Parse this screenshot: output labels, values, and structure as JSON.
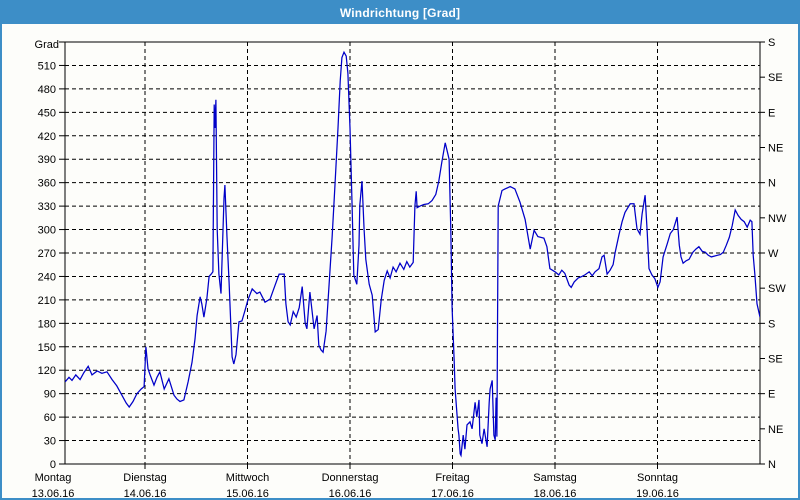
{
  "window": {
    "title": "Windrichtung [Grad]",
    "titlebar_color": "#3d8ec7",
    "border_color": "#3d8ec7",
    "background_color": "#fdfdfa"
  },
  "chart_data": {
    "type": "line",
    "title": "Windrichtung [Grad]",
    "grid": "dashed",
    "legend": "none",
    "line_color": "#0000c8",
    "axis_color": "#000000",
    "ylabel_left": "Grad",
    "ylim": [
      0,
      540
    ],
    "y_left_tick_labels": [
      0,
      30,
      60,
      90,
      120,
      150,
      180,
      210,
      240,
      270,
      300,
      330,
      360,
      390,
      420,
      450,
      480,
      510
    ],
    "y_gridline_step": 30,
    "y_right_compass_labels": [
      {
        "deg": 540,
        "label": "S"
      },
      {
        "deg": 495,
        "label": "SE"
      },
      {
        "deg": 450,
        "label": "E"
      },
      {
        "deg": 405,
        "label": "NE"
      },
      {
        "deg": 360,
        "label": "N"
      },
      {
        "deg": 315,
        "label": "NW"
      },
      {
        "deg": 270,
        "label": "W"
      },
      {
        "deg": 225,
        "label": "SW"
      },
      {
        "deg": 180,
        "label": "S"
      },
      {
        "deg": 135,
        "label": "SE"
      },
      {
        "deg": 90,
        "label": "E"
      },
      {
        "deg": 45,
        "label": "NE"
      },
      {
        "deg": 0,
        "label": "N"
      }
    ],
    "x_unit": "hours_since_monday_00",
    "xlim": [
      0,
      168
    ],
    "x_gridline_step_hours": 24,
    "x_day_labels": [
      {
        "name": "Montag",
        "date": "13.06.16",
        "start_hour": 0
      },
      {
        "name": "Dienstag",
        "date": "14.06.16",
        "start_hour": 24
      },
      {
        "name": "Mittwoch",
        "date": "15.06.16",
        "start_hour": 48
      },
      {
        "name": "Donnerstag",
        "date": "16.06.16",
        "start_hour": 72
      },
      {
        "name": "Freitag",
        "date": "17.06.16",
        "start_hour": 96
      },
      {
        "name": "Samstag",
        "date": "18.06.16",
        "start_hour": 120
      },
      {
        "name": "Sonntag",
        "date": "19.06.16",
        "start_hour": 144
      }
    ],
    "series": [
      {
        "name": "Windrichtung",
        "color": "#0000c8",
        "points": [
          [
            5.3,
            105
          ],
          [
            6.2,
            111
          ],
          [
            6.9,
            107
          ],
          [
            7.8,
            114
          ],
          [
            8.8,
            108
          ],
          [
            9.7,
            117
          ],
          [
            10.7,
            125
          ],
          [
            11.6,
            114
          ],
          [
            12.8,
            119
          ],
          [
            13.9,
            116
          ],
          [
            15.1,
            118
          ],
          [
            16.3,
            108
          ],
          [
            17.4,
            100
          ],
          [
            18.6,
            88
          ],
          [
            19.6,
            78
          ],
          [
            20.3,
            73
          ],
          [
            21.2,
            80
          ],
          [
            22.1,
            90
          ],
          [
            23.1,
            96
          ],
          [
            23.8,
            99
          ],
          [
            24.2,
            150
          ],
          [
            24.7,
            122
          ],
          [
            25.2,
            114
          ],
          [
            26.1,
            101
          ],
          [
            26.8,
            111
          ],
          [
            27.5,
            118
          ],
          [
            28.5,
            96
          ],
          [
            29.6,
            109
          ],
          [
            30.8,
            88
          ],
          [
            31.5,
            83
          ],
          [
            32.2,
            80
          ],
          [
            33.1,
            82
          ],
          [
            34.1,
            105
          ],
          [
            35.0,
            130
          ],
          [
            35.7,
            160
          ],
          [
            36.2,
            190
          ],
          [
            36.9,
            214
          ],
          [
            37.3,
            205
          ],
          [
            37.8,
            188
          ],
          [
            38.5,
            212
          ],
          [
            39.0,
            240
          ],
          [
            39.5,
            243
          ],
          [
            39.9,
            246
          ],
          [
            40.2,
            460
          ],
          [
            40.4,
            430
          ],
          [
            40.6,
            466
          ],
          [
            40.9,
            300
          ],
          [
            41.3,
            243
          ],
          [
            41.8,
            218
          ],
          [
            42.5,
            340
          ],
          [
            42.7,
            357
          ],
          [
            43.2,
            290
          ],
          [
            43.7,
            232
          ],
          [
            44.4,
            137
          ],
          [
            44.8,
            128
          ],
          [
            45.3,
            140
          ],
          [
            46.0,
            182
          ],
          [
            46.7,
            183
          ],
          [
            47.4,
            196
          ],
          [
            48.1,
            210
          ],
          [
            49.1,
            224
          ],
          [
            50.2,
            218
          ],
          [
            50.9,
            220
          ],
          [
            52.1,
            207
          ],
          [
            53.3,
            211
          ],
          [
            54.2,
            225
          ],
          [
            55.4,
            243
          ],
          [
            56.6,
            243
          ],
          [
            57.0,
            205
          ],
          [
            57.5,
            182
          ],
          [
            58.0,
            178
          ],
          [
            58.7,
            195
          ],
          [
            59.4,
            188
          ],
          [
            60.1,
            200
          ],
          [
            60.8,
            227
          ],
          [
            61.5,
            180
          ],
          [
            61.9,
            173
          ],
          [
            62.6,
            220
          ],
          [
            63.6,
            173
          ],
          [
            64.3,
            190
          ],
          [
            64.7,
            152
          ],
          [
            65.2,
            146
          ],
          [
            65.7,
            143
          ],
          [
            66.4,
            170
          ],
          [
            67.1,
            230
          ],
          [
            67.8,
            290
          ],
          [
            68.5,
            360
          ],
          [
            69.2,
            430
          ],
          [
            69.7,
            490
          ],
          [
            70.1,
            520
          ],
          [
            70.6,
            527
          ],
          [
            71.1,
            522
          ],
          [
            71.5,
            500
          ],
          [
            72.0,
            430
          ],
          [
            72.5,
            330
          ],
          [
            72.9,
            242
          ],
          [
            73.6,
            230
          ],
          [
            74.1,
            280
          ],
          [
            74.3,
            331
          ],
          [
            74.8,
            362
          ],
          [
            75.3,
            300
          ],
          [
            75.7,
            262
          ],
          [
            76.5,
            230
          ],
          [
            77.2,
            216
          ],
          [
            77.9,
            169
          ],
          [
            78.6,
            172
          ],
          [
            79.3,
            210
          ],
          [
            80.0,
            235
          ],
          [
            80.7,
            247
          ],
          [
            81.4,
            238
          ],
          [
            82.1,
            252
          ],
          [
            82.8,
            246
          ],
          [
            83.7,
            257
          ],
          [
            84.6,
            249
          ],
          [
            85.3,
            259
          ],
          [
            86.0,
            252
          ],
          [
            86.8,
            258
          ],
          [
            87.2,
            330
          ],
          [
            87.5,
            349
          ],
          [
            87.7,
            328
          ],
          [
            88.4,
            330
          ],
          [
            89.3,
            332
          ],
          [
            90.3,
            333
          ],
          [
            91.2,
            337
          ],
          [
            92.1,
            345
          ],
          [
            92.8,
            362
          ],
          [
            93.5,
            386
          ],
          [
            94.3,
            411
          ],
          [
            94.7,
            402
          ],
          [
            95.2,
            390
          ],
          [
            95.6,
            300
          ],
          [
            95.9,
            200
          ],
          [
            96.4,
            131
          ],
          [
            96.6,
            96
          ],
          [
            97.1,
            60
          ],
          [
            97.3,
            45
          ],
          [
            97.5,
            37
          ],
          [
            97.8,
            13
          ],
          [
            98.0,
            11
          ],
          [
            98.5,
            37
          ],
          [
            98.9,
            19
          ],
          [
            99.4,
            50
          ],
          [
            100.1,
            54
          ],
          [
            100.6,
            45
          ],
          [
            101.3,
            79
          ],
          [
            101.7,
            60
          ],
          [
            102.2,
            82
          ],
          [
            102.4,
            37
          ],
          [
            102.9,
            26
          ],
          [
            103.4,
            45
          ],
          [
            104.1,
            22
          ],
          [
            104.6,
            79
          ],
          [
            104.8,
            96
          ],
          [
            105.3,
            107
          ],
          [
            105.7,
            37
          ],
          [
            106.0,
            31
          ],
          [
            106.2,
            85
          ],
          [
            106.4,
            35
          ],
          [
            106.7,
            330
          ],
          [
            107.6,
            350
          ],
          [
            108.3,
            352
          ],
          [
            109.5,
            355
          ],
          [
            110.6,
            352
          ],
          [
            111.8,
            335
          ],
          [
            113.0,
            313
          ],
          [
            114.2,
            275
          ],
          [
            115.1,
            299
          ],
          [
            116.0,
            291
          ],
          [
            117.4,
            289
          ],
          [
            118.1,
            278
          ],
          [
            118.8,
            250
          ],
          [
            120.0,
            246
          ],
          [
            120.9,
            242
          ],
          [
            121.6,
            248
          ],
          [
            122.3,
            244
          ],
          [
            123.3,
            229
          ],
          [
            123.8,
            226
          ],
          [
            124.5,
            233
          ],
          [
            125.4,
            238
          ],
          [
            126.3,
            240
          ],
          [
            127.0,
            242
          ],
          [
            128.0,
            246
          ],
          [
            128.7,
            241
          ],
          [
            129.4,
            246
          ],
          [
            130.3,
            250
          ],
          [
            131.0,
            265
          ],
          [
            131.5,
            267
          ],
          [
            132.2,
            243
          ],
          [
            132.9,
            248
          ],
          [
            133.6,
            255
          ],
          [
            134.1,
            271
          ],
          [
            135.0,
            294
          ],
          [
            135.7,
            310
          ],
          [
            136.4,
            322
          ],
          [
            137.6,
            333
          ],
          [
            138.5,
            333
          ],
          [
            139.2,
            301
          ],
          [
            139.9,
            294
          ],
          [
            140.4,
            320
          ],
          [
            141.1,
            344
          ],
          [
            141.6,
            297
          ],
          [
            142.0,
            250
          ],
          [
            142.7,
            242
          ],
          [
            143.4,
            237
          ],
          [
            144.1,
            226
          ],
          [
            144.6,
            233
          ],
          [
            145.3,
            265
          ],
          [
            146.3,
            282
          ],
          [
            147.0,
            295
          ],
          [
            147.7,
            300
          ],
          [
            148.6,
            316
          ],
          [
            149.1,
            280
          ],
          [
            149.5,
            265
          ],
          [
            150.0,
            257
          ],
          [
            150.7,
            260
          ],
          [
            151.4,
            262
          ],
          [
            152.3,
            271
          ],
          [
            153.0,
            275
          ],
          [
            153.7,
            278
          ],
          [
            154.5,
            272
          ],
          [
            155.2,
            271
          ],
          [
            155.9,
            267
          ],
          [
            156.6,
            265
          ],
          [
            157.3,
            266
          ],
          [
            158.0,
            267
          ],
          [
            158.7,
            268
          ],
          [
            159.4,
            271
          ],
          [
            160.1,
            280
          ],
          [
            160.8,
            290
          ],
          [
            161.5,
            305
          ],
          [
            162.2,
            325
          ],
          [
            162.9,
            318
          ],
          [
            163.6,
            313
          ],
          [
            164.3,
            310
          ],
          [
            165.0,
            303
          ],
          [
            165.7,
            312
          ],
          [
            166.1,
            310
          ],
          [
            166.4,
            267
          ],
          [
            166.8,
            242
          ],
          [
            167.3,
            205
          ],
          [
            168.0,
            188
          ]
        ]
      }
    ]
  }
}
